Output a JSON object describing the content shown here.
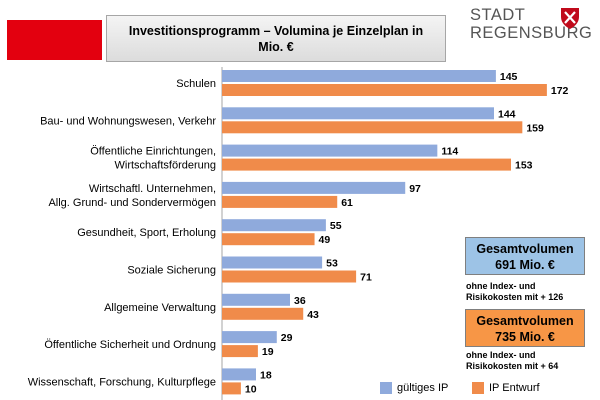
{
  "header": {
    "title_line1": "Investitionsprogramm – Volumina je Einzelplan in",
    "title_line2": "Mio. €"
  },
  "logo": {
    "line1": "STADT",
    "line2": "REGENSBURG"
  },
  "colors": {
    "accent_red": "#e3000f",
    "series_gueltig": "#8faadc",
    "series_entwurf": "#f08b4a",
    "total1_bg": "#9dc3e6",
    "total2_bg": "#f79646"
  },
  "chart_data": {
    "type": "bar",
    "orientation": "horizontal",
    "categories": [
      [
        "Schulen"
      ],
      [
        "Bau- und Wohnungswesen, Verkehr"
      ],
      [
        "Öffentliche Einrichtungen,",
        "Wirtschaftsförderung"
      ],
      [
        "Wirtschaftl. Unternehmen,",
        "Allg. Grund- und Sondervermögen"
      ],
      [
        "Gesundheit, Sport, Erholung"
      ],
      [
        "Soziale Sicherung"
      ],
      [
        "Allgemeine Verwaltung"
      ],
      [
        "Öffentliche Sicherheit und Ordnung"
      ],
      [
        "Wissenschaft, Forschung, Kulturpflege"
      ]
    ],
    "series": [
      {
        "name": "gültiges IP",
        "values": [
          145,
          144,
          114,
          97,
          55,
          53,
          36,
          29,
          18
        ]
      },
      {
        "name": "IP Entwurf",
        "values": [
          172,
          159,
          153,
          61,
          49,
          71,
          43,
          19,
          10
        ]
      }
    ],
    "xlim": [
      0,
      180
    ],
    "data_labels": true,
    "legend": "bottom-right"
  },
  "totals": [
    {
      "line1": "Gesamtvolumen",
      "line2": "691 Mio. €",
      "note_line1": "ohne Index- und",
      "note_line2": "Risikokosten mit + 126"
    },
    {
      "line1": "Gesamtvolumen",
      "line2": "735 Mio. €",
      "note_line1": "ohne Index- und",
      "note_line2": "Risikokosten mit + 64"
    }
  ]
}
